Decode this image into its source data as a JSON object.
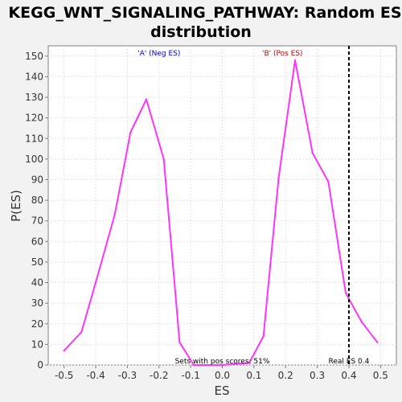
{
  "chart_data": {
    "type": "line",
    "title_lines": [
      "KEGG_WNT_SIGNALING_PATHWAY: Random ES",
      "distribution"
    ],
    "xlabel": "ES",
    "ylabel": "P(ES)",
    "xlim": [
      -0.55,
      0.55
    ],
    "ylim": [
      0,
      155
    ],
    "x_ticks": [
      -0.5,
      -0.4,
      -0.3,
      -0.2,
      -0.1,
      0.0,
      0.1,
      0.2,
      0.3,
      0.4,
      0.5
    ],
    "x_tick_labels": [
      "-0.5",
      "-0.4",
      "-0.3",
      "-0.2",
      "-0.1",
      "0.0",
      "0.1",
      "0.2",
      "0.3",
      "0.4",
      "0.5"
    ],
    "y_ticks": [
      0,
      10,
      20,
      30,
      40,
      50,
      60,
      70,
      80,
      90,
      100,
      110,
      120,
      130,
      140,
      150
    ],
    "y_tick_labels": [
      "0",
      "10",
      "20",
      "30",
      "40",
      "50",
      "60",
      "70",
      "80",
      "90",
      "100",
      "110",
      "120",
      "130",
      "140",
      "150"
    ],
    "grid": true,
    "series": [
      {
        "color": "#ff33ff",
        "x": [
          -0.5,
          -0.445,
          -0.4,
          -0.34,
          -0.29,
          -0.24,
          -0.185,
          -0.135,
          -0.09,
          0.0,
          0.085,
          0.13,
          0.178,
          0.23,
          0.285,
          0.335,
          0.39,
          0.44,
          0.49
        ],
        "y": [
          7,
          16,
          40,
          73,
          113,
          129,
          100,
          11,
          0,
          0,
          1,
          14,
          91,
          148,
          103,
          89,
          35,
          21,
          11
        ]
      }
    ],
    "real_es": 0.4,
    "annotations": {
      "neg_label": "'A' (Neg ES)",
      "pos_label": "'B' (Pos ES)",
      "pos_scores": "Sets with pos scores: 51%",
      "real_es": "Real ES 0.4"
    },
    "colors": {
      "neg_label": "#0000cc",
      "pos_label": "#cc0000",
      "real_es_line": "#000000"
    }
  }
}
